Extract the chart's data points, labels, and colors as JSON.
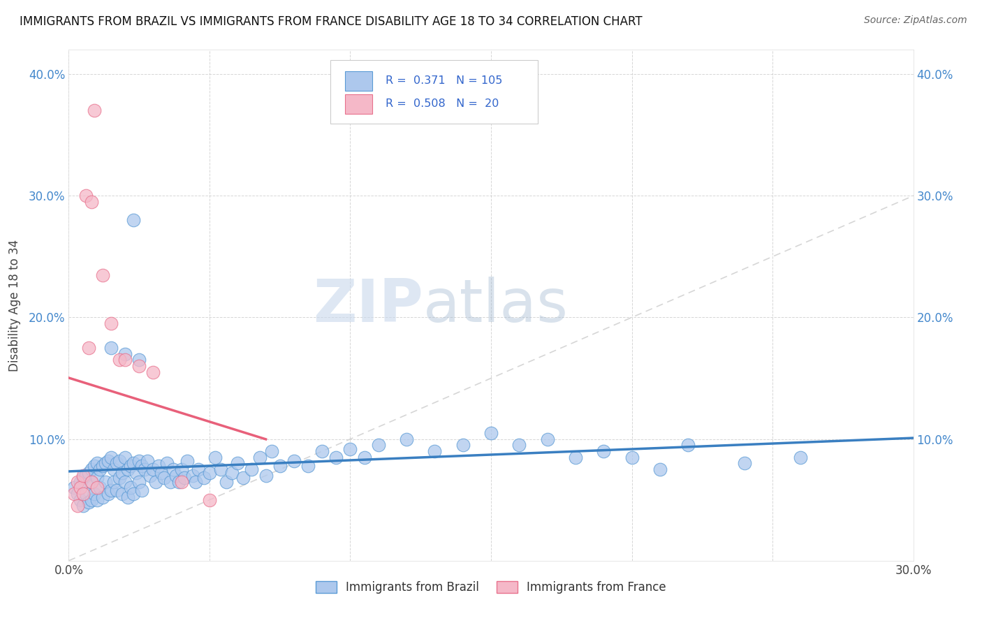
{
  "title": "IMMIGRANTS FROM BRAZIL VS IMMIGRANTS FROM FRANCE DISABILITY AGE 18 TO 34 CORRELATION CHART",
  "source": "Source: ZipAtlas.com",
  "ylabel": "Disability Age 18 to 34",
  "xlim": [
    0.0,
    0.3
  ],
  "ylim": [
    0.0,
    0.42
  ],
  "xticks": [
    0.0,
    0.05,
    0.1,
    0.15,
    0.2,
    0.25,
    0.3
  ],
  "xticklabels": [
    "0.0%",
    "",
    "",
    "",
    "",
    "",
    "30.0%"
  ],
  "yticks": [
    0.0,
    0.1,
    0.2,
    0.3,
    0.4
  ],
  "yticklabels": [
    "",
    "10.0%",
    "20.0%",
    "30.0%",
    "40.0%"
  ],
  "brazil_color": "#adc8ed",
  "france_color": "#f5b8c8",
  "brazil_edge_color": "#5b9bd5",
  "france_edge_color": "#e8718d",
  "brazil_line_color": "#3a7fc1",
  "france_line_color": "#e8607a",
  "brazil_R": 0.371,
  "brazil_N": 105,
  "france_R": 0.508,
  "france_N": 20,
  "watermark_zip": "ZIP",
  "watermark_atlas": "atlas",
  "legend_label_brazil": "Immigrants from Brazil",
  "legend_label_france": "Immigrants from France",
  "brazil_scatter_x": [
    0.002,
    0.003,
    0.004,
    0.004,
    0.005,
    0.005,
    0.006,
    0.006,
    0.007,
    0.007,
    0.008,
    0.008,
    0.008,
    0.009,
    0.009,
    0.01,
    0.01,
    0.01,
    0.011,
    0.011,
    0.012,
    0.012,
    0.013,
    0.013,
    0.014,
    0.014,
    0.015,
    0.015,
    0.016,
    0.016,
    0.017,
    0.017,
    0.018,
    0.018,
    0.019,
    0.019,
    0.02,
    0.02,
    0.021,
    0.021,
    0.022,
    0.022,
    0.023,
    0.023,
    0.024,
    0.025,
    0.025,
    0.026,
    0.026,
    0.027,
    0.028,
    0.029,
    0.03,
    0.031,
    0.032,
    0.033,
    0.034,
    0.035,
    0.036,
    0.037,
    0.038,
    0.039,
    0.04,
    0.041,
    0.042,
    0.044,
    0.045,
    0.046,
    0.048,
    0.05,
    0.052,
    0.054,
    0.056,
    0.058,
    0.06,
    0.062,
    0.065,
    0.068,
    0.07,
    0.072,
    0.075,
    0.08,
    0.085,
    0.09,
    0.095,
    0.1,
    0.105,
    0.11,
    0.12,
    0.13,
    0.14,
    0.15,
    0.16,
    0.17,
    0.18,
    0.19,
    0.2,
    0.21,
    0.22,
    0.24,
    0.015,
    0.02,
    0.025,
    0.023,
    0.26
  ],
  "brazil_scatter_y": [
    0.06,
    0.055,
    0.065,
    0.05,
    0.068,
    0.045,
    0.07,
    0.055,
    0.072,
    0.048,
    0.075,
    0.065,
    0.05,
    0.078,
    0.055,
    0.08,
    0.068,
    0.05,
    0.075,
    0.06,
    0.078,
    0.052,
    0.08,
    0.065,
    0.082,
    0.055,
    0.085,
    0.058,
    0.075,
    0.065,
    0.08,
    0.058,
    0.082,
    0.068,
    0.072,
    0.055,
    0.085,
    0.065,
    0.075,
    0.052,
    0.078,
    0.06,
    0.08,
    0.055,
    0.072,
    0.082,
    0.065,
    0.078,
    0.058,
    0.075,
    0.082,
    0.07,
    0.075,
    0.065,
    0.078,
    0.072,
    0.068,
    0.08,
    0.065,
    0.075,
    0.07,
    0.065,
    0.075,
    0.068,
    0.082,
    0.07,
    0.065,
    0.075,
    0.068,
    0.072,
    0.085,
    0.075,
    0.065,
    0.072,
    0.08,
    0.068,
    0.075,
    0.085,
    0.07,
    0.09,
    0.078,
    0.082,
    0.078,
    0.09,
    0.085,
    0.092,
    0.085,
    0.095,
    0.1,
    0.09,
    0.095,
    0.105,
    0.095,
    0.1,
    0.085,
    0.09,
    0.085,
    0.075,
    0.095,
    0.08,
    0.175,
    0.17,
    0.165,
    0.28,
    0.085
  ],
  "france_scatter_x": [
    0.002,
    0.003,
    0.003,
    0.004,
    0.005,
    0.005,
    0.006,
    0.007,
    0.008,
    0.008,
    0.009,
    0.01,
    0.012,
    0.015,
    0.018,
    0.02,
    0.025,
    0.03,
    0.04,
    0.05
  ],
  "france_scatter_y": [
    0.055,
    0.045,
    0.065,
    0.06,
    0.07,
    0.055,
    0.3,
    0.175,
    0.295,
    0.065,
    0.37,
    0.06,
    0.235,
    0.195,
    0.165,
    0.165,
    0.16,
    0.155,
    0.065,
    0.05
  ]
}
